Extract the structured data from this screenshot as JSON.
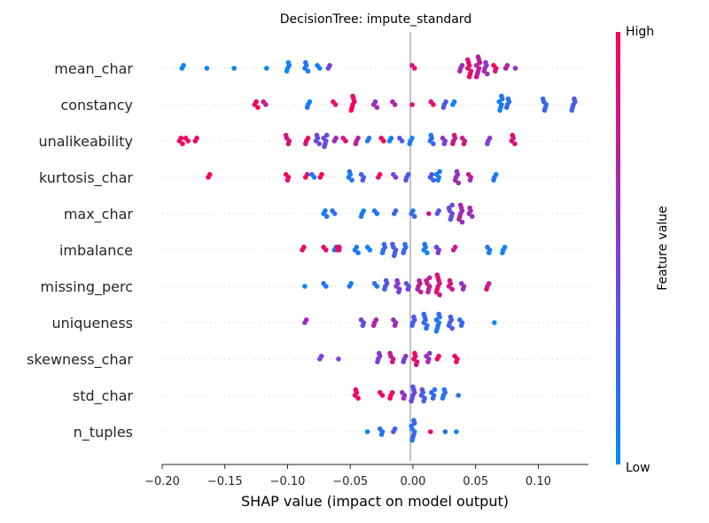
{
  "chart_data": {
    "type": "scatter",
    "subtype": "shap-beeswarm",
    "title": "DecisionTree: impute_standard",
    "xlabel": "SHAP value (impact on model output)",
    "xlim": [
      -0.2,
      0.14
    ],
    "xticks": [
      -0.2,
      -0.15,
      -0.1,
      -0.05,
      0.0,
      0.05,
      0.1
    ],
    "xtick_labels": [
      "−0.20",
      "−0.15",
      "−0.10",
      "−0.05",
      "0.00",
      "0.05",
      "0.10"
    ],
    "colorbar": {
      "label": "Feature value",
      "high": "High",
      "low": "Low",
      "low_color": "#008bfb",
      "high_color": "#ff0051"
    },
    "features": [
      {
        "name": "mean_char",
        "clusters": [
          {
            "x": -0.183,
            "v": 0.05,
            "n": 2
          },
          {
            "x": -0.165,
            "v": 0.05,
            "n": 1
          },
          {
            "x": -0.142,
            "v": 0.05,
            "n": 1
          },
          {
            "x": -0.118,
            "v": 0.05,
            "n": 1
          },
          {
            "x": -0.1,
            "v": 0.05,
            "n": 4
          },
          {
            "x": -0.085,
            "v": 0.1,
            "n": 4
          },
          {
            "x": -0.075,
            "v": 0.1,
            "n": 2
          },
          {
            "x": -0.067,
            "v": 0.4,
            "n": 2
          },
          {
            "x": 0.0,
            "v": 0.85,
            "n": 2
          },
          {
            "x": 0.038,
            "v": 0.6,
            "n": 3
          },
          {
            "x": 0.045,
            "v": 0.9,
            "n": 7
          },
          {
            "x": 0.052,
            "v": 0.75,
            "n": 8
          },
          {
            "x": 0.058,
            "v": 0.6,
            "n": 5
          },
          {
            "x": 0.065,
            "v": 0.9,
            "n": 3
          },
          {
            "x": 0.074,
            "v": 0.7,
            "n": 2
          },
          {
            "x": 0.083,
            "v": 0.6,
            "n": 1
          }
        ]
      },
      {
        "name": "constancy",
        "clusters": [
          {
            "x": -0.125,
            "v": 0.95,
            "n": 3
          },
          {
            "x": -0.118,
            "v": 0.7,
            "n": 2
          },
          {
            "x": -0.083,
            "v": 0.1,
            "n": 3
          },
          {
            "x": -0.063,
            "v": 0.9,
            "n": 2
          },
          {
            "x": -0.048,
            "v": 0.95,
            "n": 6
          },
          {
            "x": -0.03,
            "v": 0.6,
            "n": 3
          },
          {
            "x": -0.015,
            "v": 0.7,
            "n": 2
          },
          {
            "x": 0.0,
            "v": 0.9,
            "n": 1
          },
          {
            "x": 0.015,
            "v": 0.9,
            "n": 2
          },
          {
            "x": 0.025,
            "v": 0.3,
            "n": 3
          },
          {
            "x": 0.033,
            "v": 0.05,
            "n": 2
          },
          {
            "x": 0.07,
            "v": 0.1,
            "n": 6
          },
          {
            "x": 0.076,
            "v": 0.2,
            "n": 4
          },
          {
            "x": 0.105,
            "v": 0.2,
            "n": 5
          },
          {
            "x": 0.128,
            "v": 0.3,
            "n": 5
          }
        ]
      },
      {
        "name": "unalikeability",
        "clusters": [
          {
            "x": -0.185,
            "v": 0.95,
            "n": 3
          },
          {
            "x": -0.18,
            "v": 0.9,
            "n": 2
          },
          {
            "x": -0.173,
            "v": 0.95,
            "n": 2
          },
          {
            "x": -0.1,
            "v": 0.85,
            "n": 4
          },
          {
            "x": -0.085,
            "v": 0.9,
            "n": 3
          },
          {
            "x": -0.076,
            "v": 0.4,
            "n": 4
          },
          {
            "x": -0.07,
            "v": 0.4,
            "n": 5
          },
          {
            "x": -0.062,
            "v": 0.6,
            "n": 2
          },
          {
            "x": -0.055,
            "v": 0.85,
            "n": 2
          },
          {
            "x": -0.045,
            "v": 0.7,
            "n": 3
          },
          {
            "x": -0.035,
            "v": 0.1,
            "n": 2
          },
          {
            "x": -0.024,
            "v": 0.95,
            "n": 2
          },
          {
            "x": -0.018,
            "v": 0.1,
            "n": 2
          },
          {
            "x": -0.01,
            "v": 0.3,
            "n": 2
          },
          {
            "x": -0.002,
            "v": 0.1,
            "n": 3
          },
          {
            "x": 0.015,
            "v": 0.2,
            "n": 4
          },
          {
            "x": 0.025,
            "v": 0.5,
            "n": 3
          },
          {
            "x": 0.033,
            "v": 0.75,
            "n": 4
          },
          {
            "x": 0.04,
            "v": 0.8,
            "n": 3
          },
          {
            "x": 0.06,
            "v": 0.5,
            "n": 3
          },
          {
            "x": 0.08,
            "v": 0.85,
            "n": 4
          }
        ]
      },
      {
        "name": "kurtosis_char",
        "clusters": [
          {
            "x": -0.162,
            "v": 0.95,
            "n": 2
          },
          {
            "x": -0.1,
            "v": 0.95,
            "n": 3
          },
          {
            "x": -0.085,
            "v": 0.9,
            "n": 2
          },
          {
            "x": -0.08,
            "v": 0.1,
            "n": 2
          },
          {
            "x": -0.074,
            "v": 0.95,
            "n": 2
          },
          {
            "x": -0.05,
            "v": 0.1,
            "n": 4
          },
          {
            "x": -0.04,
            "v": 0.3,
            "n": 3
          },
          {
            "x": -0.027,
            "v": 0.9,
            "n": 2
          },
          {
            "x": -0.015,
            "v": 0.5,
            "n": 2
          },
          {
            "x": -0.005,
            "v": 0.3,
            "n": 3
          },
          {
            "x": 0.015,
            "v": 0.3,
            "n": 3
          },
          {
            "x": 0.02,
            "v": 0.1,
            "n": 4
          },
          {
            "x": 0.035,
            "v": 0.6,
            "n": 5
          },
          {
            "x": 0.045,
            "v": 0.7,
            "n": 3
          },
          {
            "x": 0.065,
            "v": 0.1,
            "n": 3
          }
        ]
      },
      {
        "name": "max_char",
        "clusters": [
          {
            "x": -0.07,
            "v": 0.1,
            "n": 3
          },
          {
            "x": -0.063,
            "v": 0.15,
            "n": 2
          },
          {
            "x": -0.04,
            "v": 0.1,
            "n": 3
          },
          {
            "x": -0.03,
            "v": 0.15,
            "n": 2
          },
          {
            "x": -0.015,
            "v": 0.2,
            "n": 2
          },
          {
            "x": 0.0,
            "v": 0.2,
            "n": 3
          },
          {
            "x": 0.012,
            "v": 0.85,
            "n": 1
          },
          {
            "x": 0.02,
            "v": 0.3,
            "n": 2
          },
          {
            "x": 0.03,
            "v": 0.4,
            "n": 6
          },
          {
            "x": 0.038,
            "v": 0.65,
            "n": 7
          },
          {
            "x": 0.046,
            "v": 0.6,
            "n": 4
          }
        ]
      },
      {
        "name": "imbalance",
        "clusters": [
          {
            "x": -0.087,
            "v": 0.95,
            "n": 2
          },
          {
            "x": -0.07,
            "v": 0.9,
            "n": 2
          },
          {
            "x": -0.062,
            "v": 0.1,
            "n": 2
          },
          {
            "x": -0.06,
            "v": 0.6,
            "n": 2
          },
          {
            "x": -0.06,
            "v": 0.9,
            "n": 2
          },
          {
            "x": -0.045,
            "v": 0.1,
            "n": 3
          },
          {
            "x": -0.035,
            "v": 0.1,
            "n": 2
          },
          {
            "x": -0.023,
            "v": 0.2,
            "n": 4
          },
          {
            "x": -0.015,
            "v": 0.3,
            "n": 5
          },
          {
            "x": -0.007,
            "v": 0.2,
            "n": 4
          },
          {
            "x": 0.01,
            "v": 0.1,
            "n": 4
          },
          {
            "x": 0.02,
            "v": 0.5,
            "n": 3
          },
          {
            "x": 0.033,
            "v": 0.8,
            "n": 2
          },
          {
            "x": 0.06,
            "v": 0.1,
            "n": 3
          },
          {
            "x": 0.072,
            "v": 0.05,
            "n": 3
          }
        ]
      },
      {
        "name": "missing_perc",
        "clusters": [
          {
            "x": -0.085,
            "v": 0.1,
            "n": 1
          },
          {
            "x": -0.07,
            "v": 0.1,
            "n": 2
          },
          {
            "x": -0.05,
            "v": 0.1,
            "n": 2
          },
          {
            "x": -0.03,
            "v": 0.2,
            "n": 2
          },
          {
            "x": -0.022,
            "v": 0.3,
            "n": 4
          },
          {
            "x": -0.012,
            "v": 0.5,
            "n": 5
          },
          {
            "x": -0.004,
            "v": 0.4,
            "n": 3
          },
          {
            "x": 0.005,
            "v": 0.7,
            "n": 5
          },
          {
            "x": 0.012,
            "v": 0.75,
            "n": 6
          },
          {
            "x": 0.02,
            "v": 0.85,
            "n": 8
          },
          {
            "x": 0.03,
            "v": 0.8,
            "n": 4
          },
          {
            "x": 0.04,
            "v": 0.6,
            "n": 3
          },
          {
            "x": 0.06,
            "v": 0.8,
            "n": 3
          }
        ]
      },
      {
        "name": "uniqueness",
        "clusters": [
          {
            "x": -0.085,
            "v": 0.6,
            "n": 2
          },
          {
            "x": -0.04,
            "v": 0.4,
            "n": 3
          },
          {
            "x": -0.03,
            "v": 0.7,
            "n": 3
          },
          {
            "x": -0.015,
            "v": 0.6,
            "n": 3
          },
          {
            "x": 0.0,
            "v": 0.3,
            "n": 4
          },
          {
            "x": 0.01,
            "v": 0.2,
            "n": 6
          },
          {
            "x": 0.02,
            "v": 0.15,
            "n": 7
          },
          {
            "x": 0.03,
            "v": 0.3,
            "n": 5
          },
          {
            "x": 0.038,
            "v": 0.2,
            "n": 3
          },
          {
            "x": 0.065,
            "v": 0.1,
            "n": 1
          }
        ]
      },
      {
        "name": "skewness_char",
        "clusters": [
          {
            "x": -0.073,
            "v": 0.5,
            "n": 2
          },
          {
            "x": -0.06,
            "v": 0.5,
            "n": 1
          },
          {
            "x": -0.027,
            "v": 0.5,
            "n": 4
          },
          {
            "x": -0.017,
            "v": 0.8,
            "n": 4
          },
          {
            "x": -0.007,
            "v": 0.5,
            "n": 3
          },
          {
            "x": 0.002,
            "v": 0.9,
            "n": 5
          },
          {
            "x": 0.012,
            "v": 0.6,
            "n": 4
          },
          {
            "x": 0.02,
            "v": 0.9,
            "n": 2
          },
          {
            "x": 0.034,
            "v": 0.95,
            "n": 3
          }
        ]
      },
      {
        "name": "std_char",
        "clusters": [
          {
            "x": -0.045,
            "v": 0.95,
            "n": 4
          },
          {
            "x": -0.025,
            "v": 0.9,
            "n": 2
          },
          {
            "x": -0.017,
            "v": 0.95,
            "n": 3
          },
          {
            "x": -0.008,
            "v": 0.6,
            "n": 3
          },
          {
            "x": 0.0,
            "v": 0.4,
            "n": 6
          },
          {
            "x": 0.008,
            "v": 0.3,
            "n": 5
          },
          {
            "x": 0.016,
            "v": 0.2,
            "n": 4
          },
          {
            "x": 0.025,
            "v": 0.15,
            "n": 4
          },
          {
            "x": 0.035,
            "v": 0.1,
            "n": 1
          }
        ]
      },
      {
        "name": "n_tuples",
        "clusters": [
          {
            "x": -0.035,
            "v": 0.1,
            "n": 1
          },
          {
            "x": -0.025,
            "v": 0.15,
            "n": 3
          },
          {
            "x": -0.015,
            "v": 0.3,
            "n": 2
          },
          {
            "x": 0.0,
            "v": 0.2,
            "n": 8
          },
          {
            "x": 0.014,
            "v": 0.95,
            "n": 1
          },
          {
            "x": 0.027,
            "v": 0.15,
            "n": 1
          },
          {
            "x": 0.034,
            "v": 0.1,
            "n": 1
          }
        ]
      }
    ]
  }
}
